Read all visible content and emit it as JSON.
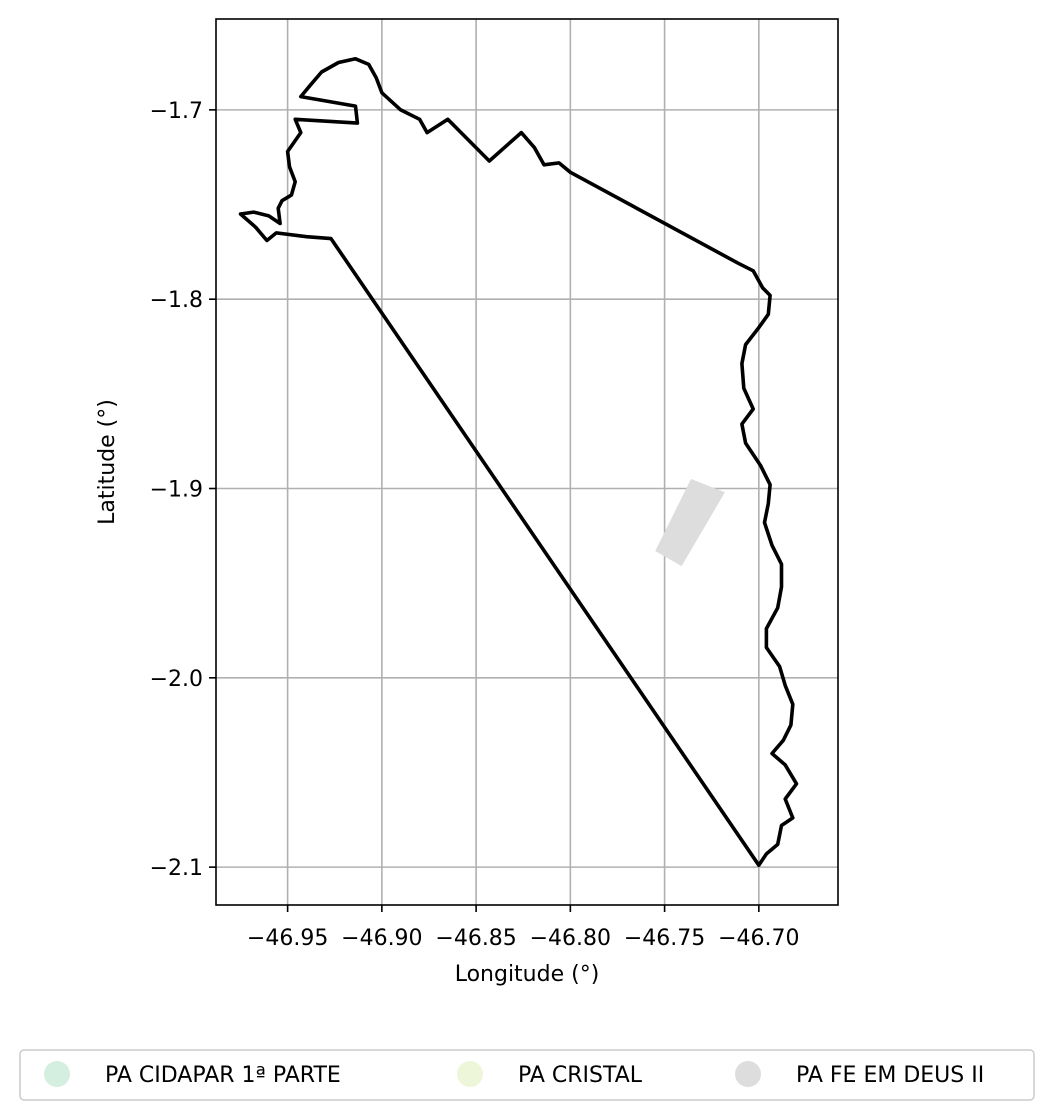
{
  "chart_data": {
    "type": "map",
    "xlabel": "Longitude (°)",
    "ylabel": "Latitude (°)",
    "xlim": [
      -46.988,
      -46.658
    ],
    "ylim": [
      -2.12,
      -1.652
    ],
    "grid": true,
    "xticks": [
      {
        "value": -46.95,
        "label": "−46.95"
      },
      {
        "value": -46.9,
        "label": "−46.90"
      },
      {
        "value": -46.85,
        "label": "−46.85"
      },
      {
        "value": -46.8,
        "label": "−46.80"
      },
      {
        "value": -46.75,
        "label": "−46.75"
      },
      {
        "value": -46.7,
        "label": "−46.70"
      }
    ],
    "yticks": [
      {
        "value": -1.7,
        "label": "−1.7"
      },
      {
        "value": -1.8,
        "label": "−1.8"
      },
      {
        "value": -1.9,
        "label": "−1.9"
      },
      {
        "value": -2.0,
        "label": "−2.0"
      },
      {
        "value": -2.1,
        "label": "−2.1"
      }
    ],
    "boundary": {
      "color": "#000000",
      "coords": [
        [
          -46.923,
          -1.675
        ],
        [
          -46.932,
          -1.68
        ],
        [
          -46.938,
          -1.687
        ],
        [
          -46.943,
          -1.693
        ],
        [
          -46.914,
          -1.698
        ],
        [
          -46.913,
          -1.707
        ],
        [
          -46.946,
          -1.705
        ],
        [
          -46.943,
          -1.712
        ],
        [
          -46.95,
          -1.722
        ],
        [
          -46.949,
          -1.73
        ],
        [
          -46.946,
          -1.738
        ],
        [
          -46.948,
          -1.745
        ],
        [
          -46.953,
          -1.748
        ],
        [
          -46.955,
          -1.752
        ],
        [
          -46.954,
          -1.76
        ],
        [
          -46.96,
          -1.756
        ],
        [
          -46.968,
          -1.754
        ],
        [
          -46.975,
          -1.755
        ],
        [
          -46.967,
          -1.762
        ],
        [
          -46.961,
          -1.769
        ],
        [
          -46.956,
          -1.765
        ],
        [
          -46.94,
          -1.767
        ],
        [
          -46.927,
          -1.768
        ],
        [
          -46.7,
          -2.099
        ],
        [
          -46.696,
          -2.093
        ],
        [
          -46.69,
          -2.088
        ],
        [
          -46.688,
          -2.078
        ],
        [
          -46.682,
          -2.074
        ],
        [
          -46.686,
          -2.064
        ],
        [
          -46.68,
          -2.056
        ],
        [
          -46.686,
          -2.046
        ],
        [
          -46.693,
          -2.04
        ],
        [
          -46.687,
          -2.033
        ],
        [
          -46.683,
          -2.025
        ],
        [
          -46.682,
          -2.014
        ],
        [
          -46.686,
          -2.004
        ],
        [
          -46.689,
          -1.994
        ],
        [
          -46.696,
          -1.984
        ],
        [
          -46.696,
          -1.974
        ],
        [
          -46.69,
          -1.963
        ],
        [
          -46.688,
          -1.952
        ],
        [
          -46.688,
          -1.94
        ],
        [
          -46.693,
          -1.93
        ],
        [
          -46.697,
          -1.918
        ],
        [
          -46.695,
          -1.908
        ],
        [
          -46.694,
          -1.898
        ],
        [
          -46.699,
          -1.888
        ],
        [
          -46.707,
          -1.876
        ],
        [
          -46.709,
          -1.866
        ],
        [
          -46.703,
          -1.858
        ],
        [
          -46.708,
          -1.847
        ],
        [
          -46.709,
          -1.834
        ],
        [
          -46.707,
          -1.824
        ],
        [
          -46.7,
          -1.815
        ],
        [
          -46.695,
          -1.808
        ],
        [
          -46.694,
          -1.798
        ],
        [
          -46.698,
          -1.794
        ],
        [
          -46.703,
          -1.785
        ],
        [
          -46.711,
          -1.781
        ],
        [
          -46.8,
          -1.733
        ],
        [
          -46.806,
          -1.728
        ],
        [
          -46.814,
          -1.729
        ],
        [
          -46.819,
          -1.72
        ],
        [
          -46.826,
          -1.712
        ],
        [
          -46.843,
          -1.727
        ],
        [
          -46.865,
          -1.705
        ],
        [
          -46.876,
          -1.712
        ],
        [
          -46.88,
          -1.705
        ],
        [
          -46.89,
          -1.7
        ],
        [
          -46.9,
          -1.691
        ],
        [
          -46.903,
          -1.683
        ],
        [
          -46.907,
          -1.676
        ],
        [
          -46.914,
          -1.673
        ],
        [
          -46.923,
          -1.675
        ]
      ]
    },
    "areas": [
      {
        "name": "PA FE EM DEUS II",
        "color": "#dddddd",
        "coords": [
          [
            -46.736,
            -1.895
          ],
          [
            -46.718,
            -1.902
          ],
          [
            -46.741,
            -1.941
          ],
          [
            -46.755,
            -1.933
          ],
          [
            -46.736,
            -1.895
          ]
        ]
      }
    ],
    "legend": {
      "placement": "bottom-center",
      "entries": [
        {
          "label": "PA CIDAPAR 1ª PARTE",
          "color": "#d4eedf"
        },
        {
          "label": "PA CRISTAL",
          "color": "#eef6da"
        },
        {
          "label": "PA FE EM DEUS II",
          "color": "#dddddd"
        }
      ]
    }
  }
}
